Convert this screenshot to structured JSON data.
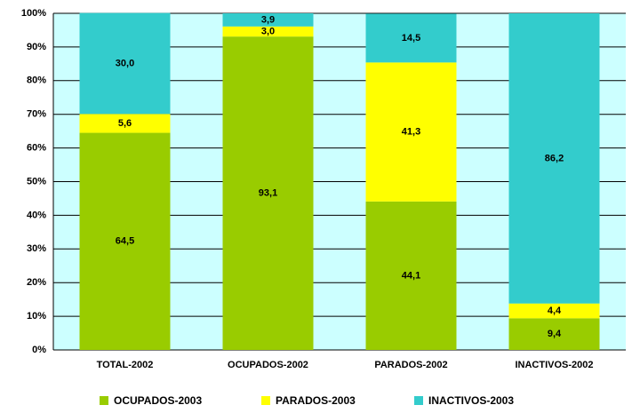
{
  "chart_data": {
    "type": "stacked_bar",
    "categories": [
      "TOTAL-2002",
      "OCUPADOS-2002",
      "PARADOS-2002",
      "INACTIVOS-2002"
    ],
    "series": [
      {
        "name": "OCUPADOS-2003",
        "color": "#99cc00",
        "values": [
          64.5,
          93.1,
          44.1,
          9.4
        ],
        "value_labels": [
          "64,5",
          "93,1",
          "44,1",
          "9,4"
        ]
      },
      {
        "name": "PARADOS-2003",
        "color": "#ffff00",
        "values": [
          5.6,
          3.0,
          41.3,
          4.4
        ],
        "value_labels": [
          "5,6",
          "3,0",
          "41,3",
          "4,4"
        ]
      },
      {
        "name": "INACTIVOS-2003",
        "color": "#33cccc",
        "values": [
          30.0,
          3.9,
          14.5,
          86.2
        ],
        "value_labels": [
          "30,0",
          "3,9",
          "14,5",
          "86,2"
        ]
      }
    ],
    "ylim": [
      0,
      100
    ],
    "yticks": [
      {
        "value": 0,
        "label": "0%"
      },
      {
        "value": 10,
        "label": "10%"
      },
      {
        "value": 20,
        "label": "20%"
      },
      {
        "value": 30,
        "label": "30%"
      },
      {
        "value": 40,
        "label": "40%"
      },
      {
        "value": 50,
        "label": "50%"
      },
      {
        "value": 60,
        "label": "60%"
      },
      {
        "value": 70,
        "label": "70%"
      },
      {
        "value": 80,
        "label": "80%"
      },
      {
        "value": 90,
        "label": "90%"
      },
      {
        "value": 100,
        "label": "100%"
      }
    ],
    "grid": true,
    "background": "#ccffff",
    "legend": "bottom"
  }
}
